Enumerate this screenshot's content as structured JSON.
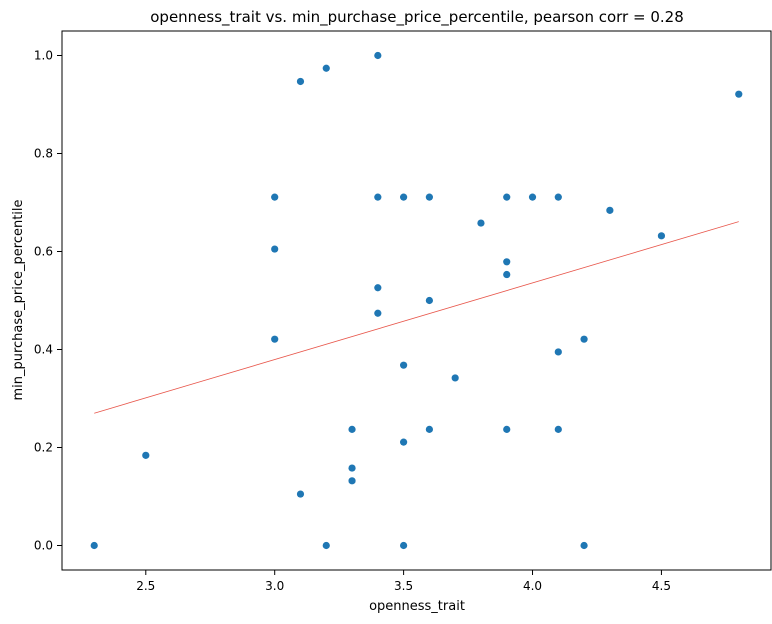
{
  "chart_data": {
    "type": "scatter",
    "title": "openness_trait vs. min_purchase_price_percentile, pearson corr = 0.28",
    "xlabel": "openness_trait",
    "ylabel": "min_purchase_price_percentile",
    "xlim": [
      2.175,
      4.925
    ],
    "ylim": [
      -0.05,
      1.05
    ],
    "xticks": [
      2.5,
      3.0,
      3.5,
      4.0,
      4.5
    ],
    "xtick_labels": [
      "2.5",
      "3.0",
      "3.5",
      "4.0",
      "4.5"
    ],
    "yticks": [
      0.0,
      0.2,
      0.4,
      0.6,
      0.8,
      1.0
    ],
    "ytick_labels": [
      "0.0",
      "0.2",
      "0.4",
      "0.6",
      "0.8",
      "1.0"
    ],
    "grid": false,
    "point_color": "#1f77b4",
    "trendline_color": "#e8574c",
    "trendline": {
      "x": [
        2.3,
        4.8
      ],
      "y": [
        0.27,
        0.661
      ]
    },
    "points": [
      {
        "x": 2.3,
        "y": 0.0
      },
      {
        "x": 2.5,
        "y": 0.184
      },
      {
        "x": 3.0,
        "y": 0.711
      },
      {
        "x": 3.0,
        "y": 0.605
      },
      {
        "x": 3.0,
        "y": 0.421
      },
      {
        "x": 3.1,
        "y": 0.947
      },
      {
        "x": 3.1,
        "y": 0.105
      },
      {
        "x": 3.2,
        "y": 0.974
      },
      {
        "x": 3.2,
        "y": 0.0
      },
      {
        "x": 3.3,
        "y": 0.237
      },
      {
        "x": 3.3,
        "y": 0.158
      },
      {
        "x": 3.3,
        "y": 0.132
      },
      {
        "x": 3.4,
        "y": 1.0
      },
      {
        "x": 3.4,
        "y": 0.711
      },
      {
        "x": 3.4,
        "y": 0.526
      },
      {
        "x": 3.4,
        "y": 0.474
      },
      {
        "x": 3.5,
        "y": 0.711
      },
      {
        "x": 3.5,
        "y": 0.368
      },
      {
        "x": 3.5,
        "y": 0.211
      },
      {
        "x": 3.5,
        "y": 0.0
      },
      {
        "x": 3.6,
        "y": 0.711
      },
      {
        "x": 3.6,
        "y": 0.5
      },
      {
        "x": 3.6,
        "y": 0.237
      },
      {
        "x": 3.7,
        "y": 0.342
      },
      {
        "x": 3.8,
        "y": 0.658
      },
      {
        "x": 3.9,
        "y": 0.711
      },
      {
        "x": 3.9,
        "y": 0.579
      },
      {
        "x": 3.9,
        "y": 0.553
      },
      {
        "x": 3.9,
        "y": 0.237
      },
      {
        "x": 4.0,
        "y": 0.711
      },
      {
        "x": 4.1,
        "y": 0.711
      },
      {
        "x": 4.1,
        "y": 0.395
      },
      {
        "x": 4.1,
        "y": 0.237
      },
      {
        "x": 4.2,
        "y": 0.421
      },
      {
        "x": 4.2,
        "y": 0.0
      },
      {
        "x": 4.3,
        "y": 0.684
      },
      {
        "x": 4.5,
        "y": 0.632
      },
      {
        "x": 4.8,
        "y": 0.921
      }
    ]
  }
}
